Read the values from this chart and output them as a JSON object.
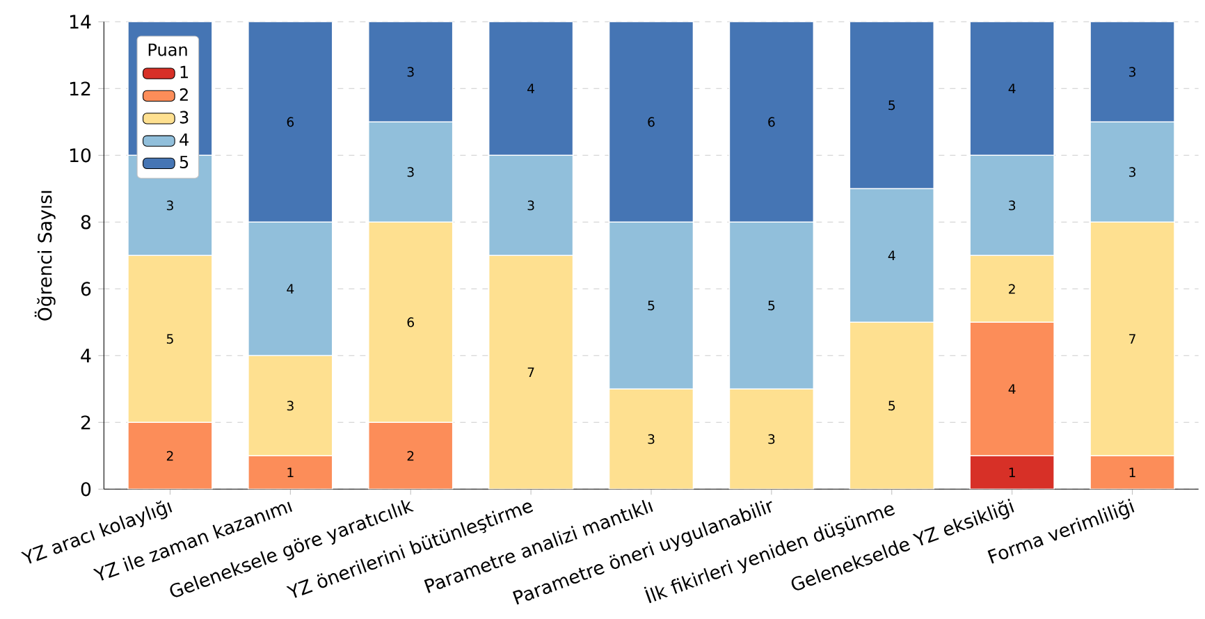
{
  "chart_data": {
    "type": "bar",
    "stacked": true,
    "ylabel": "Öğrenci Sayısı",
    "legend_title": "Puan",
    "legend": "top left",
    "grid": "y",
    "data_labels": true,
    "categories": [
      "YZ aracı kolaylığı",
      "YZ ile zaman kazanımı",
      "Geleneksele göre yaratıcılık",
      "YZ önerilerini bütünleştirme",
      "Parametre analizi mantıklı",
      "Parametre öneri uygulanabilir",
      "İlk fikirleri yeniden düşünme",
      "Gelenekselde YZ eksikliği",
      "Forma verimliliği"
    ],
    "ylim": [
      0,
      14
    ],
    "yticks": [
      0,
      2,
      4,
      6,
      8,
      10,
      12,
      14
    ],
    "series": [
      {
        "name": "1",
        "color": "#d73027",
        "values": [
          null,
          null,
          null,
          null,
          null,
          null,
          null,
          1,
          null
        ]
      },
      {
        "name": "2",
        "color": "#fc8d59",
        "values": [
          2,
          1,
          2,
          null,
          null,
          null,
          null,
          4,
          1
        ]
      },
      {
        "name": "3",
        "color": "#fee090",
        "values": [
          5,
          3,
          6,
          7,
          3,
          3,
          5,
          2,
          7
        ]
      },
      {
        "name": "4",
        "color": "#91bfdb",
        "values": [
          3,
          4,
          3,
          3,
          5,
          5,
          4,
          3,
          3
        ]
      },
      {
        "name": "5",
        "color": "#4575b4",
        "values": [
          4,
          6,
          3,
          4,
          6,
          6,
          5,
          4,
          3
        ]
      }
    ]
  }
}
